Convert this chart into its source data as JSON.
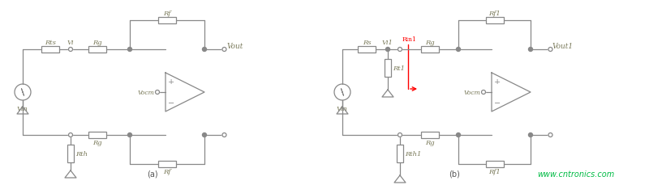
{
  "bg_color": "#ffffff",
  "line_color": "#888888",
  "text_color": "#7a7a5a",
  "red_color": "#FF0000",
  "green_color": "#00BB44",
  "fig_width": 8.0,
  "fig_height": 2.3,
  "label_a": "(a)",
  "label_b": "(b)",
  "watermark": "www.cntronics.com"
}
